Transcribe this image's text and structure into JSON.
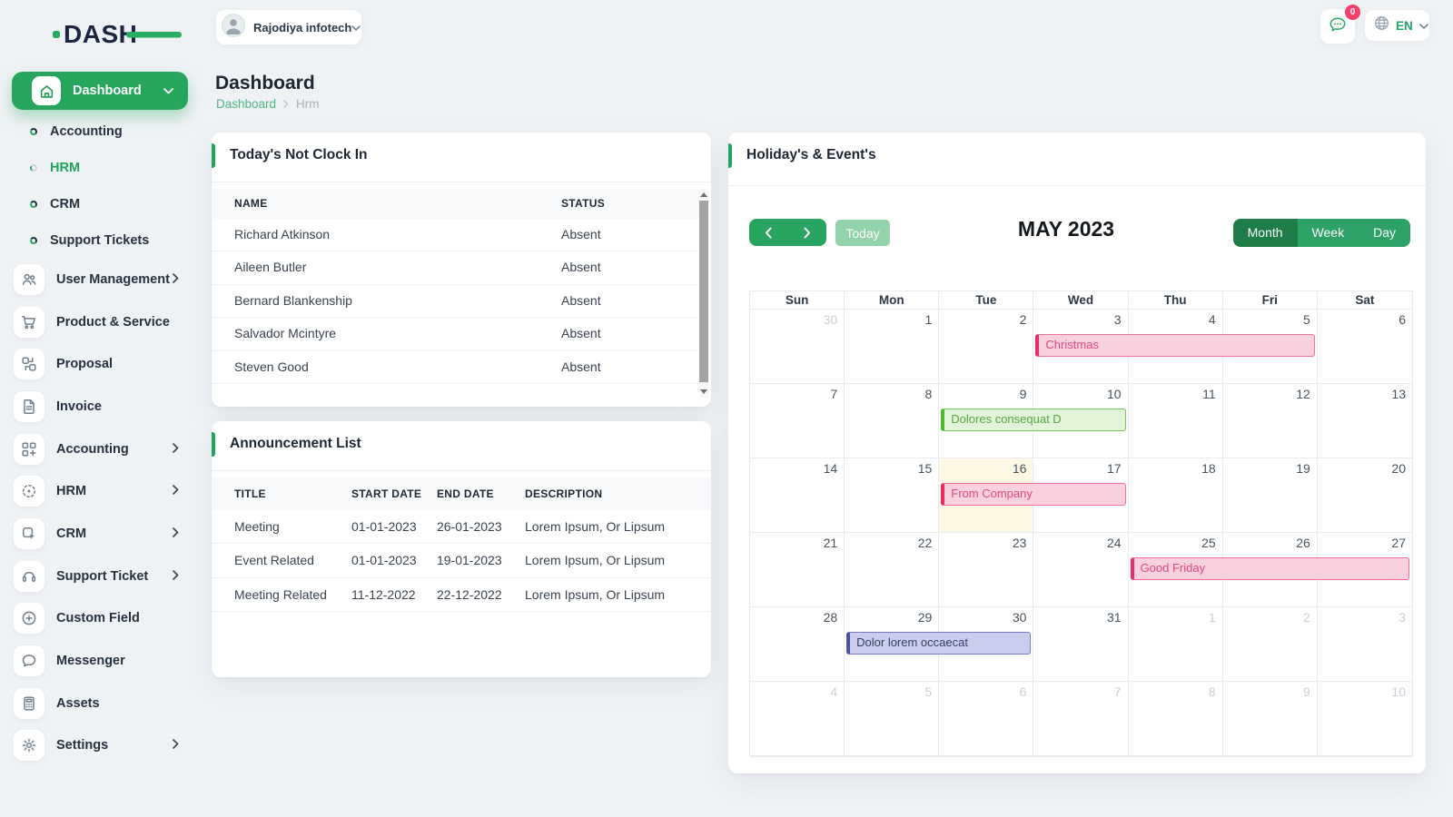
{
  "brand": {
    "logo_text": "DASH",
    "logo_color": "#1b2441",
    "logo_accent": "#27ae60"
  },
  "topbar": {
    "company": "Rajodiya infotech",
    "chat_badge": "0",
    "language": "EN"
  },
  "page": {
    "title": "Dashboard",
    "breadcrumb_root": "Dashboard",
    "breadcrumb_current": "Hrm"
  },
  "sidebar": {
    "items": [
      {
        "label": "Dashboard",
        "icon": "home",
        "style": "active",
        "chevron": "down"
      },
      {
        "label": "Accounting",
        "style": "bullet"
      },
      {
        "label": "HRM",
        "style": "bullet",
        "active": true
      },
      {
        "label": "CRM",
        "style": "bullet"
      },
      {
        "label": "Support Tickets",
        "style": "bullet"
      },
      {
        "label": "User Management",
        "icon": "users",
        "chevron": "right"
      },
      {
        "label": "Product & Service",
        "icon": "cart"
      },
      {
        "label": "Proposal",
        "icon": "swap"
      },
      {
        "label": "Invoice",
        "icon": "file"
      },
      {
        "label": "Accounting",
        "icon": "category",
        "chevron": "right"
      },
      {
        "label": "HRM",
        "icon": "hub",
        "chevron": "right"
      },
      {
        "label": "CRM",
        "icon": "crm",
        "chevron": "right"
      },
      {
        "label": "Support Ticket",
        "icon": "headset",
        "chevron": "right"
      },
      {
        "label": "Custom Field",
        "icon": "plus-circle"
      },
      {
        "label": "Messenger",
        "icon": "chat"
      },
      {
        "label": "Assets",
        "icon": "calculator"
      },
      {
        "label": "Settings",
        "icon": "gear",
        "chevron": "right"
      }
    ]
  },
  "clockin": {
    "title": "Today's Not Clock In",
    "columns": [
      "NAME",
      "STATUS"
    ],
    "rows": [
      {
        "name": "Richard Atkinson",
        "status": "Absent"
      },
      {
        "name": "Aileen Butler",
        "status": "Absent"
      },
      {
        "name": "Bernard Blankenship",
        "status": "Absent"
      },
      {
        "name": "Salvador Mcintyre",
        "status": "Absent"
      },
      {
        "name": "Steven Good",
        "status": "Absent"
      }
    ]
  },
  "announcements": {
    "title": "Announcement List",
    "columns": [
      "TITLE",
      "START DATE",
      "END DATE",
      "DESCRIPTION"
    ],
    "rows": [
      {
        "title": "Meeting",
        "start": "01-01-2023",
        "end": "26-01-2023",
        "description": "Lorem Ipsum, Or Lipsum"
      },
      {
        "title": "Event Related",
        "start": "01-01-2023",
        "end": "19-01-2023",
        "description": "Lorem Ipsum, Or Lipsum"
      },
      {
        "title": "Meeting Related",
        "start": "11-12-2022",
        "end": "22-12-2022",
        "description": "Lorem Ipsum, Or Lipsum"
      }
    ]
  },
  "calendar": {
    "card_title": "Holiday's & Event's",
    "toolbar": {
      "today_label": "Today",
      "title": "MAY 2023",
      "views": [
        "Month",
        "Week",
        "Day"
      ],
      "active_view": "Month"
    },
    "weekdays": [
      "Sun",
      "Mon",
      "Tue",
      "Wed",
      "Thu",
      "Fri",
      "Sat"
    ],
    "weeks": [
      [
        {
          "d": 30,
          "m": true
        },
        {
          "d": 1
        },
        {
          "d": 2
        },
        {
          "d": 3
        },
        {
          "d": 4
        },
        {
          "d": 5
        },
        {
          "d": 6
        }
      ],
      [
        {
          "d": 7
        },
        {
          "d": 8
        },
        {
          "d": 9
        },
        {
          "d": 10
        },
        {
          "d": 11
        },
        {
          "d": 12
        },
        {
          "d": 13
        }
      ],
      [
        {
          "d": 14
        },
        {
          "d": 15
        },
        {
          "d": 16,
          "today": true
        },
        {
          "d": 17
        },
        {
          "d": 18
        },
        {
          "d": 19
        },
        {
          "d": 20
        }
      ],
      [
        {
          "d": 21
        },
        {
          "d": 22
        },
        {
          "d": 23
        },
        {
          "d": 24
        },
        {
          "d": 25
        },
        {
          "d": 26
        },
        {
          "d": 27
        }
      ],
      [
        {
          "d": 28
        },
        {
          "d": 29
        },
        {
          "d": 30
        },
        {
          "d": 31
        },
        {
          "d": 1,
          "m": true
        },
        {
          "d": 2,
          "m": true
        },
        {
          "d": 3,
          "m": true
        }
      ],
      [
        {
          "d": 4,
          "m": true
        },
        {
          "d": 5,
          "m": true
        },
        {
          "d": 6,
          "m": true
        },
        {
          "d": 7,
          "m": true
        },
        {
          "d": 8,
          "m": true
        },
        {
          "d": 9,
          "m": true
        },
        {
          "d": 10,
          "m": true
        }
      ]
    ],
    "events": [
      {
        "title": "Christmas",
        "week": 0,
        "col": 3,
        "span": 3,
        "color": "pink"
      },
      {
        "title": "Dolores consequat D",
        "week": 1,
        "col": 2,
        "span": 2,
        "color": "green"
      },
      {
        "title": "From Company",
        "week": 2,
        "col": 2,
        "span": 2,
        "color": "pink"
      },
      {
        "title": "Good Friday",
        "week": 3,
        "col": 4,
        "span": 3,
        "color": "pink"
      },
      {
        "title": "Dolor lorem occaecat",
        "week": 4,
        "col": 1,
        "span": 2,
        "color": "purple"
      }
    ],
    "event_palette": {
      "pink": {
        "bg": "#f8d1dc",
        "border": "#f0719b",
        "strip": "#e62d68",
        "text": "#e2487f"
      },
      "green": {
        "bg": "#e1f4da",
        "border": "#74c457",
        "strip": "#4fba27",
        "text": "#57a63e"
      },
      "purple": {
        "bg": "#caceec",
        "border": "#757dbe",
        "strip": "#4a549d",
        "text": "#333d68"
      }
    },
    "today_bg": "#fdf8e3"
  }
}
